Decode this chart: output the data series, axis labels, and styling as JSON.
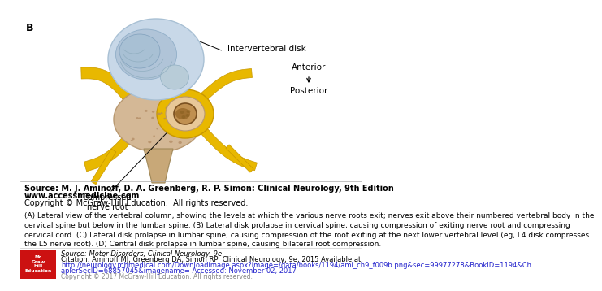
{
  "panel_label": "B",
  "intervertebral_disk_label": "Intervertebral disk",
  "anterior_label": "Anterior",
  "posterior_label": "Posterior",
  "compressed_nerve_label": "Compressed\nnerve root",
  "source_line1": "Source: M. J. Aminoff, D. A. Greenberg, R. P. Simon: Clinical Neurology, 9th Edition",
  "source_line2": "www.accessmedicine.com",
  "source_line3": "Copyright © McGraw-Hill Education.  All rights reserved.",
  "caption": "(A) Lateral view of the vertebral column, showing the levels at which the various nerve roots exit; nerves exit above their numbered vertebral body in the\ncervical spine but below in the lumbar spine. (B) Lateral disk prolapse in cervical spine, causing compression of exiting nerve root and compressing\ncervical cord. (C) Lateral disk prolapse in lumbar spine, causing compression of the root exiting at the next lower vertebral level (eg, L4 disk compresses\nthe L5 nerve root). (D) Central disk prolapse in lumbar spine, causing bilateral root compression.",
  "citation_source": "Source: Motor Disorders, Clinical Neurology, 9e",
  "citation_text": "Citation: Aminoff MJ, Greenberg DA, Simon RP  Clinical Neurology, 9e; 2015 Available at:",
  "citation_url": "http://neurology.mhmedical.com/Downloadimage.aspx?image=/data/books/1194/ami_ch9_f009b.png&sec=99977278&BookID=1194&Ch",
  "citation_url2": "aplerSecID=68857045&imagename= Accessed: November 02, 2017",
  "citation_copy": "Copyright © 2017 McGraw-Hill Education. All rights reserved.",
  "bg_color": "#ffffff",
  "mcgraw_red": "#cc1111",
  "text_color": "#000000",
  "source_fontsize": 7.0,
  "caption_fontsize": 6.5,
  "citation_fontsize": 6.0,
  "disk_color": "#c8d8e8",
  "disk_inner_color": "#b0c4d8",
  "nerve_yellow": "#e8b800",
  "nerve_yellow_dark": "#c89800",
  "bone_color": "#d4b896",
  "bone_dark": "#b89870",
  "canal_color": "#e8c898",
  "compressed_nerve_color": "#a07040",
  "spinous_color": "#c8a878"
}
